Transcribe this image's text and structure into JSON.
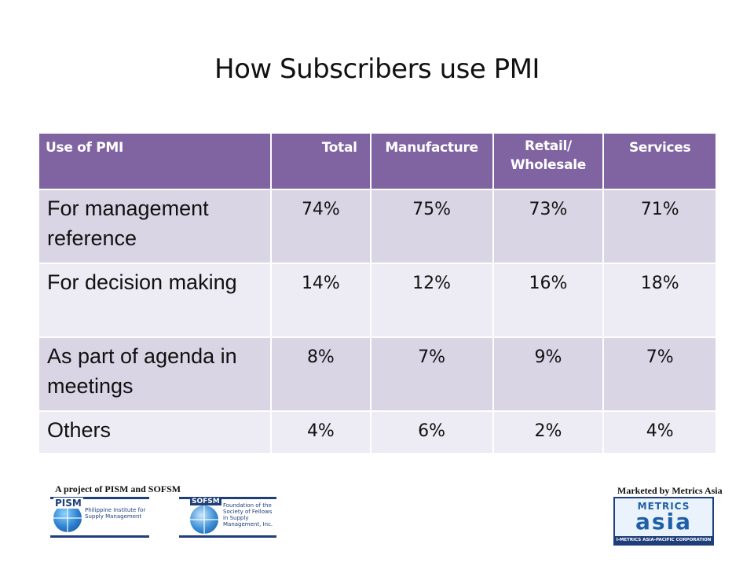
{
  "slide": {
    "title": "How Subscribers use PMI"
  },
  "table": {
    "headers": [
      "Use of PMI",
      "Total",
      "Manufacture",
      "Retail/\nWholesale",
      "Services"
    ],
    "rows": [
      {
        "label": "For management reference",
        "values": [
          "74%",
          "75%",
          "73%",
          "71%"
        ]
      },
      {
        "label": "For decision making",
        "values": [
          "14%",
          "12%",
          "16%",
          "18%"
        ]
      },
      {
        "label": "As part of agenda in meetings",
        "values": [
          "8%",
          "7%",
          "9%",
          "7%"
        ]
      },
      {
        "label": "Others",
        "values": [
          "4%",
          "6%",
          "2%",
          "4%"
        ]
      }
    ]
  },
  "footer": {
    "project_label": "A project of PISM and SOFSM",
    "marketed_label": "Marketed by Metrics Asia",
    "pism_logo": {
      "wordmark": "PISM",
      "text": "Philippine Institute for Supply Management"
    },
    "sofsm_logo": {
      "wordmark": "SOFSM",
      "text": "Foundation of the Society of Fellows in Supply Management, Inc."
    },
    "metrics_logo": {
      "top": "METRICS",
      "main": "asia",
      "bottom": "I-METRICS ASIA-PACIFIC CORPORATION"
    }
  },
  "colors": {
    "header_bg": "#8064a2",
    "row_odd": "#d9d5e5",
    "row_even": "#edebf3",
    "logo_blue": "#1f3f7a"
  }
}
